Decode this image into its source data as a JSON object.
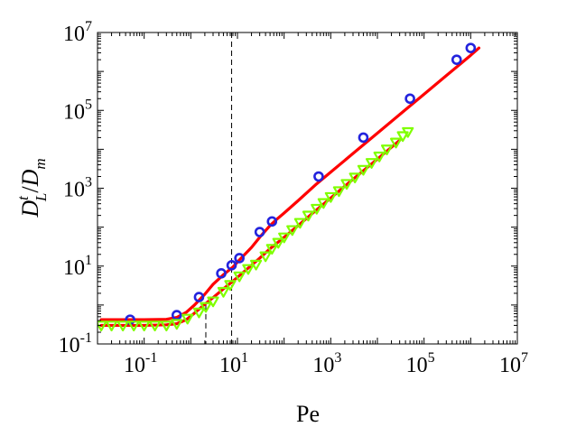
{
  "chart_data": {
    "type": "scatter",
    "xlabel": "Pe",
    "ylabel": {
      "main": "D",
      "sup": "t",
      "sub": "L",
      "slash": "/",
      "main2": "D",
      "sub2": "m"
    },
    "xscale": "log",
    "yscale": "log",
    "xlim": [
      0.01,
      10000000
    ],
    "ylim": [
      0.1,
      10000000
    ],
    "x_ticks": [
      {
        "base": "10",
        "exp": "-1",
        "value": 0.1
      },
      {
        "base": "10",
        "exp": "1",
        "value": 10
      },
      {
        "base": "10",
        "exp": "3",
        "value": 1000
      },
      {
        "base": "10",
        "exp": "5",
        "value": 100000
      },
      {
        "base": "10",
        "exp": "7",
        "value": 10000000
      }
    ],
    "y_ticks": [
      {
        "base": "10",
        "exp": "-1",
        "value": 0.1
      },
      {
        "base": "10",
        "exp": "1",
        "value": 10
      },
      {
        "base": "10",
        "exp": "3",
        "value": 1000
      },
      {
        "base": "10",
        "exp": "5",
        "value": 100000
      },
      {
        "base": "10",
        "exp": "7",
        "value": 10000000
      }
    ],
    "vlines": [
      {
        "x": 7.5,
        "ymin": 0.1,
        "ymax": 10000000,
        "style": "dashed",
        "color": "#000000"
      },
      {
        "x": 2.1,
        "ymin": 0.1,
        "ymax": 1.0,
        "style": "dashed",
        "color": "#000000"
      }
    ],
    "series": [
      {
        "kind": "line",
        "color": "#ff0000",
        "points": [
          [
            0.012,
            0.42
          ],
          [
            0.05,
            0.42
          ],
          [
            0.1,
            0.42
          ],
          [
            0.3,
            0.43
          ],
          [
            0.5,
            0.48
          ],
          [
            0.8,
            0.65
          ],
          [
            1.2,
            1.0
          ],
          [
            2,
            1.9
          ],
          [
            3,
            3.4
          ],
          [
            5,
            6.0
          ],
          [
            8,
            9.5
          ],
          [
            12,
            16
          ],
          [
            20,
            30
          ],
          [
            30,
            55
          ],
          [
            50,
            110
          ],
          [
            70,
            160
          ],
          [
            100,
            230
          ],
          [
            200,
            480
          ],
          [
            500,
            1300
          ],
          [
            1000,
            2600
          ],
          [
            3000,
            7800
          ],
          [
            10000,
            26000
          ],
          [
            30000,
            78000
          ],
          [
            100000,
            260000
          ],
          [
            300000,
            780000
          ],
          [
            1000000,
            2600000
          ],
          [
            1500000,
            4000000
          ]
        ]
      },
      {
        "kind": "line",
        "color": "#ff0000",
        "points": [
          [
            0.012,
            0.3
          ],
          [
            0.05,
            0.3
          ],
          [
            0.1,
            0.3
          ],
          [
            0.3,
            0.31
          ],
          [
            0.5,
            0.33
          ],
          [
            0.8,
            0.42
          ],
          [
            1.2,
            0.62
          ],
          [
            2,
            1.05
          ],
          [
            3,
            1.55
          ],
          [
            5,
            2.6
          ],
          [
            8,
            4.1
          ],
          [
            12,
            6.2
          ],
          [
            20,
            10.5
          ],
          [
            30,
            16
          ],
          [
            50,
            28
          ],
          [
            100,
            55
          ],
          [
            200,
            110
          ],
          [
            500,
            280
          ],
          [
            1000,
            560
          ],
          [
            3000,
            1700
          ],
          [
            10000,
            5600
          ],
          [
            30000,
            17000
          ]
        ]
      },
      {
        "kind": "markers",
        "marker": "circle",
        "color": "#2323dd",
        "points": [
          [
            0.05,
            0.42
          ],
          [
            0.5,
            0.55
          ],
          [
            1.5,
            1.6
          ],
          [
            4.5,
            6.5
          ],
          [
            7.5,
            10.5
          ],
          [
            11,
            16
          ],
          [
            30,
            75
          ],
          [
            55,
            140
          ],
          [
            550,
            2000
          ],
          [
            5000,
            20000
          ],
          [
            50000,
            200000
          ],
          [
            500000,
            2000000
          ],
          [
            1000000,
            4000000
          ]
        ]
      },
      {
        "kind": "markers",
        "marker": "triangle-down",
        "color": "#7fff00",
        "points": [
          [
            0.012,
            0.3
          ],
          [
            0.02,
            0.3
          ],
          [
            0.035,
            0.3
          ],
          [
            0.06,
            0.3
          ],
          [
            0.1,
            0.3
          ],
          [
            0.17,
            0.3
          ],
          [
            0.3,
            0.3
          ],
          [
            0.5,
            0.33
          ],
          [
            0.85,
            0.45
          ],
          [
            1.5,
            0.65
          ],
          [
            2.1,
            0.9
          ],
          [
            3,
            1.25
          ],
          [
            5,
            2.2
          ],
          [
            7,
            3.3
          ],
          [
            11,
            5.5
          ],
          [
            17,
            8.5
          ],
          [
            25,
            11
          ],
          [
            40,
            18
          ],
          [
            55,
            28
          ],
          [
            75,
            40
          ],
          [
            100,
            55
          ],
          [
            150,
            85
          ],
          [
            220,
            130
          ],
          [
            330,
            200
          ],
          [
            500,
            300
          ],
          [
            700,
            420
          ],
          [
            1000,
            600
          ],
          [
            1500,
            850
          ],
          [
            2200,
            1300
          ],
          [
            3300,
            1900
          ],
          [
            5000,
            3000
          ],
          [
            7500,
            4500
          ],
          [
            11000,
            6600
          ],
          [
            16000,
            10000
          ],
          [
            25000,
            15000
          ],
          [
            35000,
            22000
          ],
          [
            45000,
            28000
          ]
        ]
      }
    ]
  }
}
